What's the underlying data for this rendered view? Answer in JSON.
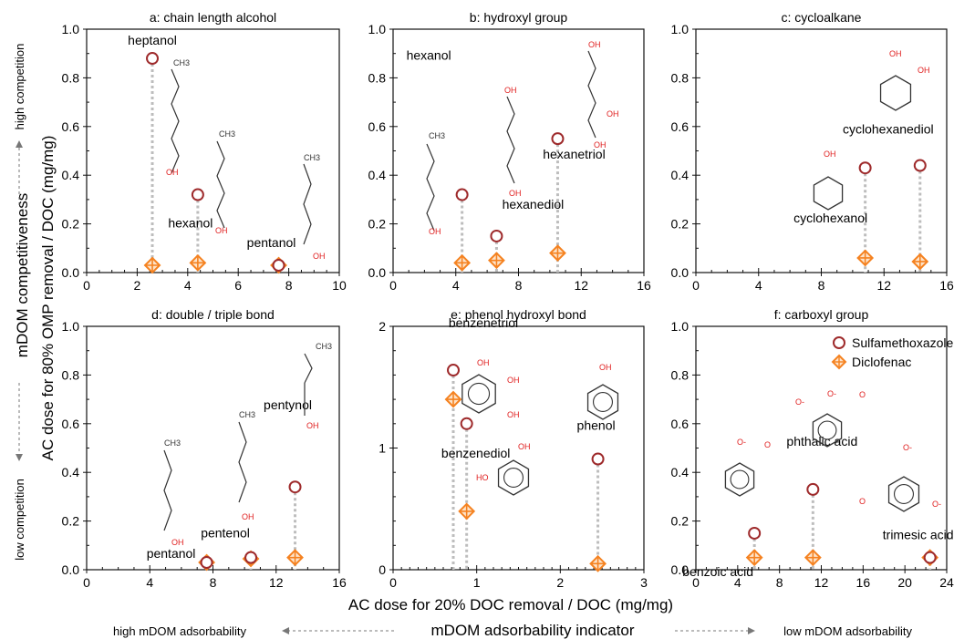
{
  "figure": {
    "ylabel": "AC dose for 80% OMP removal / DOC (mg/mg)",
    "xlabel": "AC dose for 20% DOC removal / DOC (mg/mg)",
    "left_indicator": {
      "title": "mDOM competitiveness",
      "high": "high competition",
      "low": "low competition"
    },
    "bottom_indicator": {
      "title": "mDOM adsorbability indicator",
      "left": "high mDOM adsorbability",
      "right": "low mDOM adsorbability"
    },
    "legend": {
      "sulfamethoxazole": "Sulfamethoxazole",
      "diclofenac": "Diclofenac"
    },
    "colors": {
      "sulfamethoxazole": "#9e2a2b",
      "diclofenac": "#f58220",
      "dotted": "#bdbdbd",
      "structure": "#333333",
      "hetero": "#e02020"
    }
  },
  "chart_data": [
    {
      "type": "scatter",
      "title": "a: chain length alcohol",
      "xlim": [
        0,
        10
      ],
      "ylim": [
        0,
        1.0
      ],
      "xticks": [
        "0",
        "2",
        "4",
        "6",
        "8",
        "10"
      ],
      "yticks": [
        "0.0",
        "0.2",
        "0.4",
        "0.6",
        "0.8",
        "1.0"
      ],
      "points": [
        {
          "label": "heptanol",
          "x": 2.6,
          "smx": 0.88,
          "dcf": 0.03
        },
        {
          "label": "hexanol",
          "x": 4.4,
          "smx": 0.32,
          "dcf": 0.04
        },
        {
          "label": "pentanol",
          "x": 7.6,
          "smx": 0.03,
          "dcf": 0.03
        }
      ]
    },
    {
      "type": "scatter",
      "title": "b: hydroxyl group",
      "xlim": [
        0,
        16
      ],
      "ylim": [
        0,
        1.0
      ],
      "xticks": [
        "0",
        "4",
        "8",
        "12",
        "16"
      ],
      "yticks": [
        "0.0",
        "0.2",
        "0.4",
        "0.6",
        "0.8",
        "1.0"
      ],
      "points": [
        {
          "label": "hexanol",
          "x": 4.4,
          "smx": 0.32,
          "dcf": 0.04
        },
        {
          "label": "hexanediol",
          "x": 6.6,
          "smx": 0.15,
          "dcf": 0.05
        },
        {
          "label": "hexanetriol",
          "x": 10.5,
          "smx": 0.55,
          "dcf": 0.08
        }
      ]
    },
    {
      "type": "scatter",
      "title": "c: cycloalkane",
      "xlim": [
        0,
        16
      ],
      "ylim": [
        0,
        1.0
      ],
      "xticks": [
        "0",
        "4",
        "8",
        "12",
        "16"
      ],
      "yticks": [
        "0.0",
        "0.2",
        "0.4",
        "0.6",
        "0.8",
        "1.0"
      ],
      "points": [
        {
          "label": "cyclohexanol",
          "x": 10.8,
          "smx": 0.43,
          "dcf": 0.06
        },
        {
          "label": "cyclohexanediol",
          "x": 14.3,
          "smx": 0.44,
          "dcf": 0.045
        }
      ]
    },
    {
      "type": "scatter",
      "title": "d: double / triple bond",
      "xlim": [
        0,
        16
      ],
      "ylim": [
        0,
        1.0
      ],
      "xticks": [
        "0",
        "4",
        "8",
        "12",
        "16"
      ],
      "yticks": [
        "0.0",
        "0.2",
        "0.4",
        "0.6",
        "0.8",
        "1.0"
      ],
      "points": [
        {
          "label": "pentanol",
          "x": 7.6,
          "smx": 0.03,
          "dcf": 0.03
        },
        {
          "label": "pentenol",
          "x": 10.4,
          "smx": 0.05,
          "dcf": 0.045
        },
        {
          "label": "pentynol",
          "x": 13.2,
          "smx": 0.34,
          "dcf": 0.05
        }
      ]
    },
    {
      "type": "scatter",
      "title": "e: phenol hydroxyl bond",
      "xlim": [
        0,
        3
      ],
      "ylim": [
        0,
        2
      ],
      "xticks": [
        "0",
        "1",
        "2",
        "3"
      ],
      "yticks": [
        "0",
        "1",
        "2"
      ],
      "points": [
        {
          "label": "benzenetriol",
          "x": 0.72,
          "smx": 1.64,
          "dcf": 1.4
        },
        {
          "label": "benzenediol",
          "x": 0.88,
          "smx": 1.2,
          "dcf": 0.48
        },
        {
          "label": "phenol",
          "x": 2.45,
          "smx": 0.91,
          "dcf": 0.05
        }
      ]
    },
    {
      "type": "scatter",
      "title": "f: carboxyl group",
      "xlim": [
        0,
        24
      ],
      "ylim": [
        0,
        1.0
      ],
      "xticks": [
        "0",
        "4",
        "8",
        "12",
        "16",
        "20",
        "24"
      ],
      "yticks": [
        "0.0",
        "0.2",
        "0.4",
        "0.6",
        "0.8",
        "1.0"
      ],
      "points": [
        {
          "label": "benzoic acid",
          "x": 5.6,
          "smx": 0.15,
          "dcf": 0.05
        },
        {
          "label": "phthalic acid",
          "x": 11.2,
          "smx": 0.33,
          "dcf": 0.05
        },
        {
          "label": "trimesic acid",
          "x": 22.4,
          "smx": 0.05,
          "dcf": 0.05
        }
      ]
    }
  ]
}
